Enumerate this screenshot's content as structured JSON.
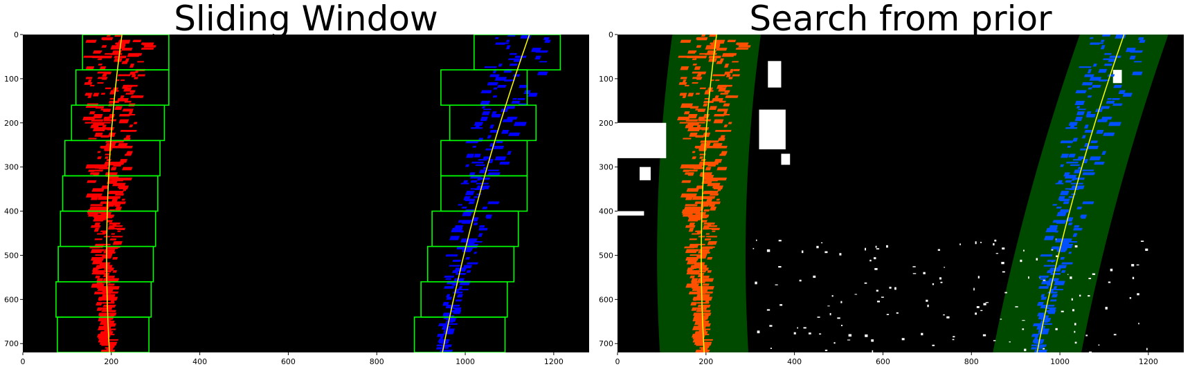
{
  "panels": [
    {
      "title": "Sliding Window",
      "xticks": [
        "0",
        "200",
        "400",
        "600",
        "800",
        "1000",
        "1200"
      ],
      "yticks": [
        "0",
        "100",
        "200",
        "300",
        "400",
        "500",
        "600",
        "700"
      ]
    },
    {
      "title": "Search from prior",
      "xticks": [
        "0",
        "200",
        "400",
        "600",
        "800",
        "1000",
        "1200"
      ],
      "yticks": [
        "0",
        "100",
        "200",
        "300",
        "400",
        "500",
        "600",
        "700"
      ]
    }
  ],
  "image": {
    "width": 1280,
    "height": 720,
    "left_fit": [
      0.000137,
      -0.1377,
      224.0
    ],
    "right_fit": [
      0.000107,
      -0.35,
      1145.0
    ],
    "margin": 100,
    "windows_left": [
      [
        135,
        330
      ],
      [
        120,
        330
      ],
      [
        110,
        320
      ],
      [
        95,
        310
      ],
      [
        90,
        305
      ],
      [
        85,
        300
      ],
      [
        80,
        295
      ],
      [
        75,
        290
      ],
      [
        78,
        285
      ]
    ],
    "windows_right": [
      [
        1020,
        1215
      ],
      [
        945,
        1140
      ],
      [
        965,
        1160
      ],
      [
        945,
        1140
      ],
      [
        945,
        1140
      ],
      [
        925,
        1120
      ],
      [
        915,
        1110
      ],
      [
        900,
        1095
      ],
      [
        885,
        1090
      ]
    ],
    "colors": {
      "left_lane_a": "#ff0000",
      "right_lane_a": "#0000ff",
      "window": "#00ff00",
      "fit": "#ffff00",
      "left_lane_b": "#ff5000",
      "right_lane_b": "#0050ff",
      "search_band": "#004a00",
      "background": "#000000"
    }
  }
}
